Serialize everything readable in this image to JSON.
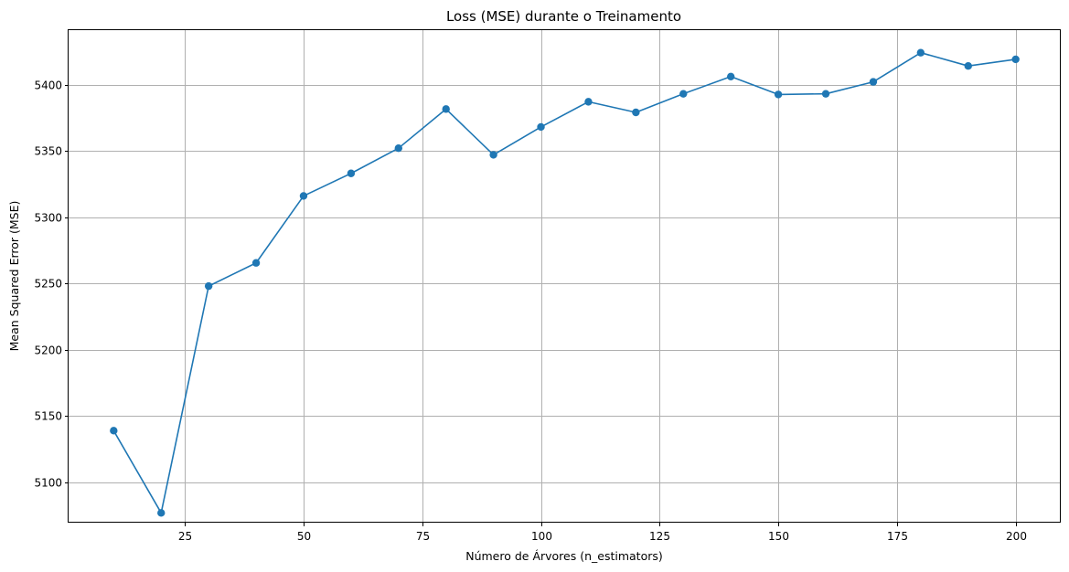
{
  "chart_data": {
    "type": "line",
    "title": "Loss (MSE) durante o Treinamento",
    "xlabel": "Número de Árvores (n_estimators)",
    "ylabel": "Mean Squared Error (MSE)",
    "x": [
      10,
      20,
      30,
      40,
      50,
      60,
      70,
      80,
      90,
      100,
      110,
      120,
      130,
      140,
      150,
      160,
      170,
      180,
      190,
      200
    ],
    "series": [
      {
        "values": [
          5139,
          5077,
          5248,
          5265.5,
          5316,
          5333,
          5352,
          5381.5,
          5347,
          5368,
          5387,
          5379,
          5393,
          5406,
          5392.5,
          5393,
          5402,
          5424,
          5414,
          5419
        ],
        "color": "#1f77b4",
        "marker": "circle"
      }
    ],
    "xlim": [
      0.5,
      209.5
    ],
    "ylim": [
      5069.65,
      5441.0
    ],
    "xticks": [
      25,
      50,
      75,
      100,
      125,
      150,
      175,
      200
    ],
    "yticks": [
      5100,
      5150,
      5200,
      5250,
      5300,
      5350,
      5400
    ],
    "grid": true
  }
}
